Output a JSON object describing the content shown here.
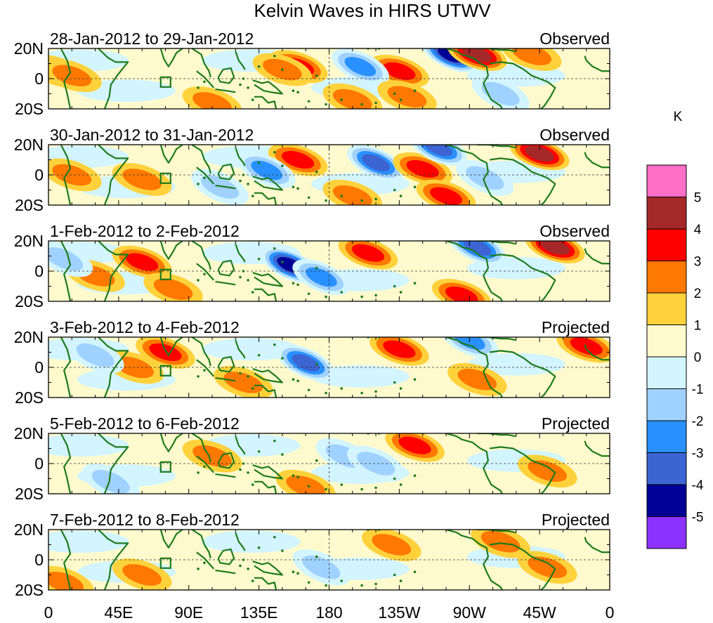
{
  "chart_data": {
    "type": "heatmap",
    "title": "Kelvin Waves in HIRS UTWV",
    "units": "K",
    "lat_labels": [
      "20N",
      "0",
      "20S"
    ],
    "lon_labels": [
      "0",
      "45E",
      "90E",
      "135E",
      "180",
      "135W",
      "90W",
      "45W",
      "0"
    ],
    "lon_range": [
      0,
      360
    ],
    "lat_range": [
      -20,
      20
    ],
    "colorbar": {
      "levels": [
        "5",
        "4",
        "3",
        "2",
        "1",
        "0",
        "-1",
        "-2",
        "-3",
        "-4",
        "-5"
      ],
      "colors": [
        "#ff6ec7",
        "#a52828",
        "#ff0000",
        "#ff7800",
        "#ffd23c",
        "#fffacd",
        "#d2f5ff",
        "#a0d2ff",
        "#2891ff",
        "#3c64d2",
        "#000096",
        "#8c32ff"
      ]
    },
    "panels": [
      {
        "date": "28-Jan-2012 to 29-Jan-2012",
        "status": "Observed",
        "features": [
          {
            "lon": 5,
            "lat": 5,
            "value": 2
          },
          {
            "lon": 15,
            "lat": 2,
            "value": 1.5
          },
          {
            "lon": 160,
            "lat": 8,
            "value": 3
          },
          {
            "lon": 150,
            "lat": 6,
            "value": 1.8
          },
          {
            "lon": 225,
            "lat": 5,
            "value": 3
          },
          {
            "lon": 200,
            "lat": 8,
            "value": -2.5
          },
          {
            "lon": 258,
            "lat": 16,
            "value": -5
          },
          {
            "lon": 275,
            "lat": 16,
            "value": 4
          },
          {
            "lon": 310,
            "lat": 16,
            "value": 2
          },
          {
            "lon": 195,
            "lat": -14,
            "value": 2
          },
          {
            "lon": 230,
            "lat": -12,
            "value": 2
          },
          {
            "lon": 105,
            "lat": -16,
            "value": 2
          },
          {
            "lon": 290,
            "lat": -10,
            "value": -1.5
          }
        ]
      },
      {
        "date": "30-Jan-2012 to 31-Jan-2012",
        "status": "Observed",
        "features": [
          {
            "lon": 15,
            "lat": 0,
            "value": 1.5
          },
          {
            "lon": 60,
            "lat": -3,
            "value": 2
          },
          {
            "lon": 160,
            "lat": 10,
            "value": 2.5
          },
          {
            "lon": 140,
            "lat": 3,
            "value": -2.5
          },
          {
            "lon": 210,
            "lat": 8,
            "value": -3.5
          },
          {
            "lon": 240,
            "lat": 4,
            "value": 2.5
          },
          {
            "lon": 255,
            "lat": -14,
            "value": 3
          },
          {
            "lon": 315,
            "lat": 14,
            "value": 4
          },
          {
            "lon": 250,
            "lat": 18,
            "value": -4
          },
          {
            "lon": 280,
            "lat": -2,
            "value": -2
          },
          {
            "lon": 195,
            "lat": -14,
            "value": 2
          },
          {
            "lon": 110,
            "lat": -8,
            "value": -1.5
          }
        ]
      },
      {
        "date": "1-Feb-2012 to 2-Feb-2012",
        "status": "Observed",
        "features": [
          {
            "lon": 60,
            "lat": 6,
            "value": 2.5
          },
          {
            "lon": 30,
            "lat": -3,
            "value": 2
          },
          {
            "lon": 155,
            "lat": 4,
            "value": -4.5
          },
          {
            "lon": 175,
            "lat": -4,
            "value": -2.5
          },
          {
            "lon": 205,
            "lat": 12,
            "value": 3
          },
          {
            "lon": 265,
            "lat": -16,
            "value": 3
          },
          {
            "lon": 275,
            "lat": 16,
            "value": -4
          },
          {
            "lon": 325,
            "lat": 16,
            "value": 4
          },
          {
            "lon": 80,
            "lat": -12,
            "value": 2
          },
          {
            "lon": 10,
            "lat": 8,
            "value": -2
          }
        ]
      },
      {
        "date": "3-Feb-2012 to 4-Feb-2012",
        "status": "Projected",
        "features": [
          {
            "lon": 75,
            "lat": 10,
            "value": 2.5
          },
          {
            "lon": 55,
            "lat": 0,
            "value": 1.5
          },
          {
            "lon": 165,
            "lat": 3,
            "value": -3.5
          },
          {
            "lon": 225,
            "lat": 12,
            "value": 3
          },
          {
            "lon": 270,
            "lat": 18,
            "value": -3
          },
          {
            "lon": 345,
            "lat": 14,
            "value": 3
          },
          {
            "lon": 275,
            "lat": -8,
            "value": 1.5
          },
          {
            "lon": 30,
            "lat": 8,
            "value": -2
          },
          {
            "lon": 125,
            "lat": -10,
            "value": 1.5
          }
        ]
      },
      {
        "date": "5-Feb-2012 to 6-Feb-2012",
        "status": "Projected",
        "features": [
          {
            "lon": 105,
            "lat": 5,
            "value": 1.5
          },
          {
            "lon": 235,
            "lat": 12,
            "value": 2.5
          },
          {
            "lon": 190,
            "lat": 5,
            "value": -2
          },
          {
            "lon": 210,
            "lat": 0,
            "value": -1.5
          },
          {
            "lon": 320,
            "lat": -5,
            "value": 1.5
          },
          {
            "lon": 40,
            "lat": -12,
            "value": -1.5
          },
          {
            "lon": 165,
            "lat": -15,
            "value": 1.5
          }
        ]
      },
      {
        "date": "7-Feb-2012 to 8-Feb-2012",
        "status": "Projected",
        "features": [
          {
            "lon": 220,
            "lat": 10,
            "value": 1.5
          },
          {
            "lon": 290,
            "lat": 12,
            "value": 1.5
          },
          {
            "lon": 175,
            "lat": -5,
            "value": -1.5
          },
          {
            "lon": 60,
            "lat": -10,
            "value": 1.5
          },
          {
            "lon": 320,
            "lat": -5,
            "value": 1.5
          },
          {
            "lon": 10,
            "lat": -15,
            "value": 2
          }
        ]
      }
    ]
  }
}
